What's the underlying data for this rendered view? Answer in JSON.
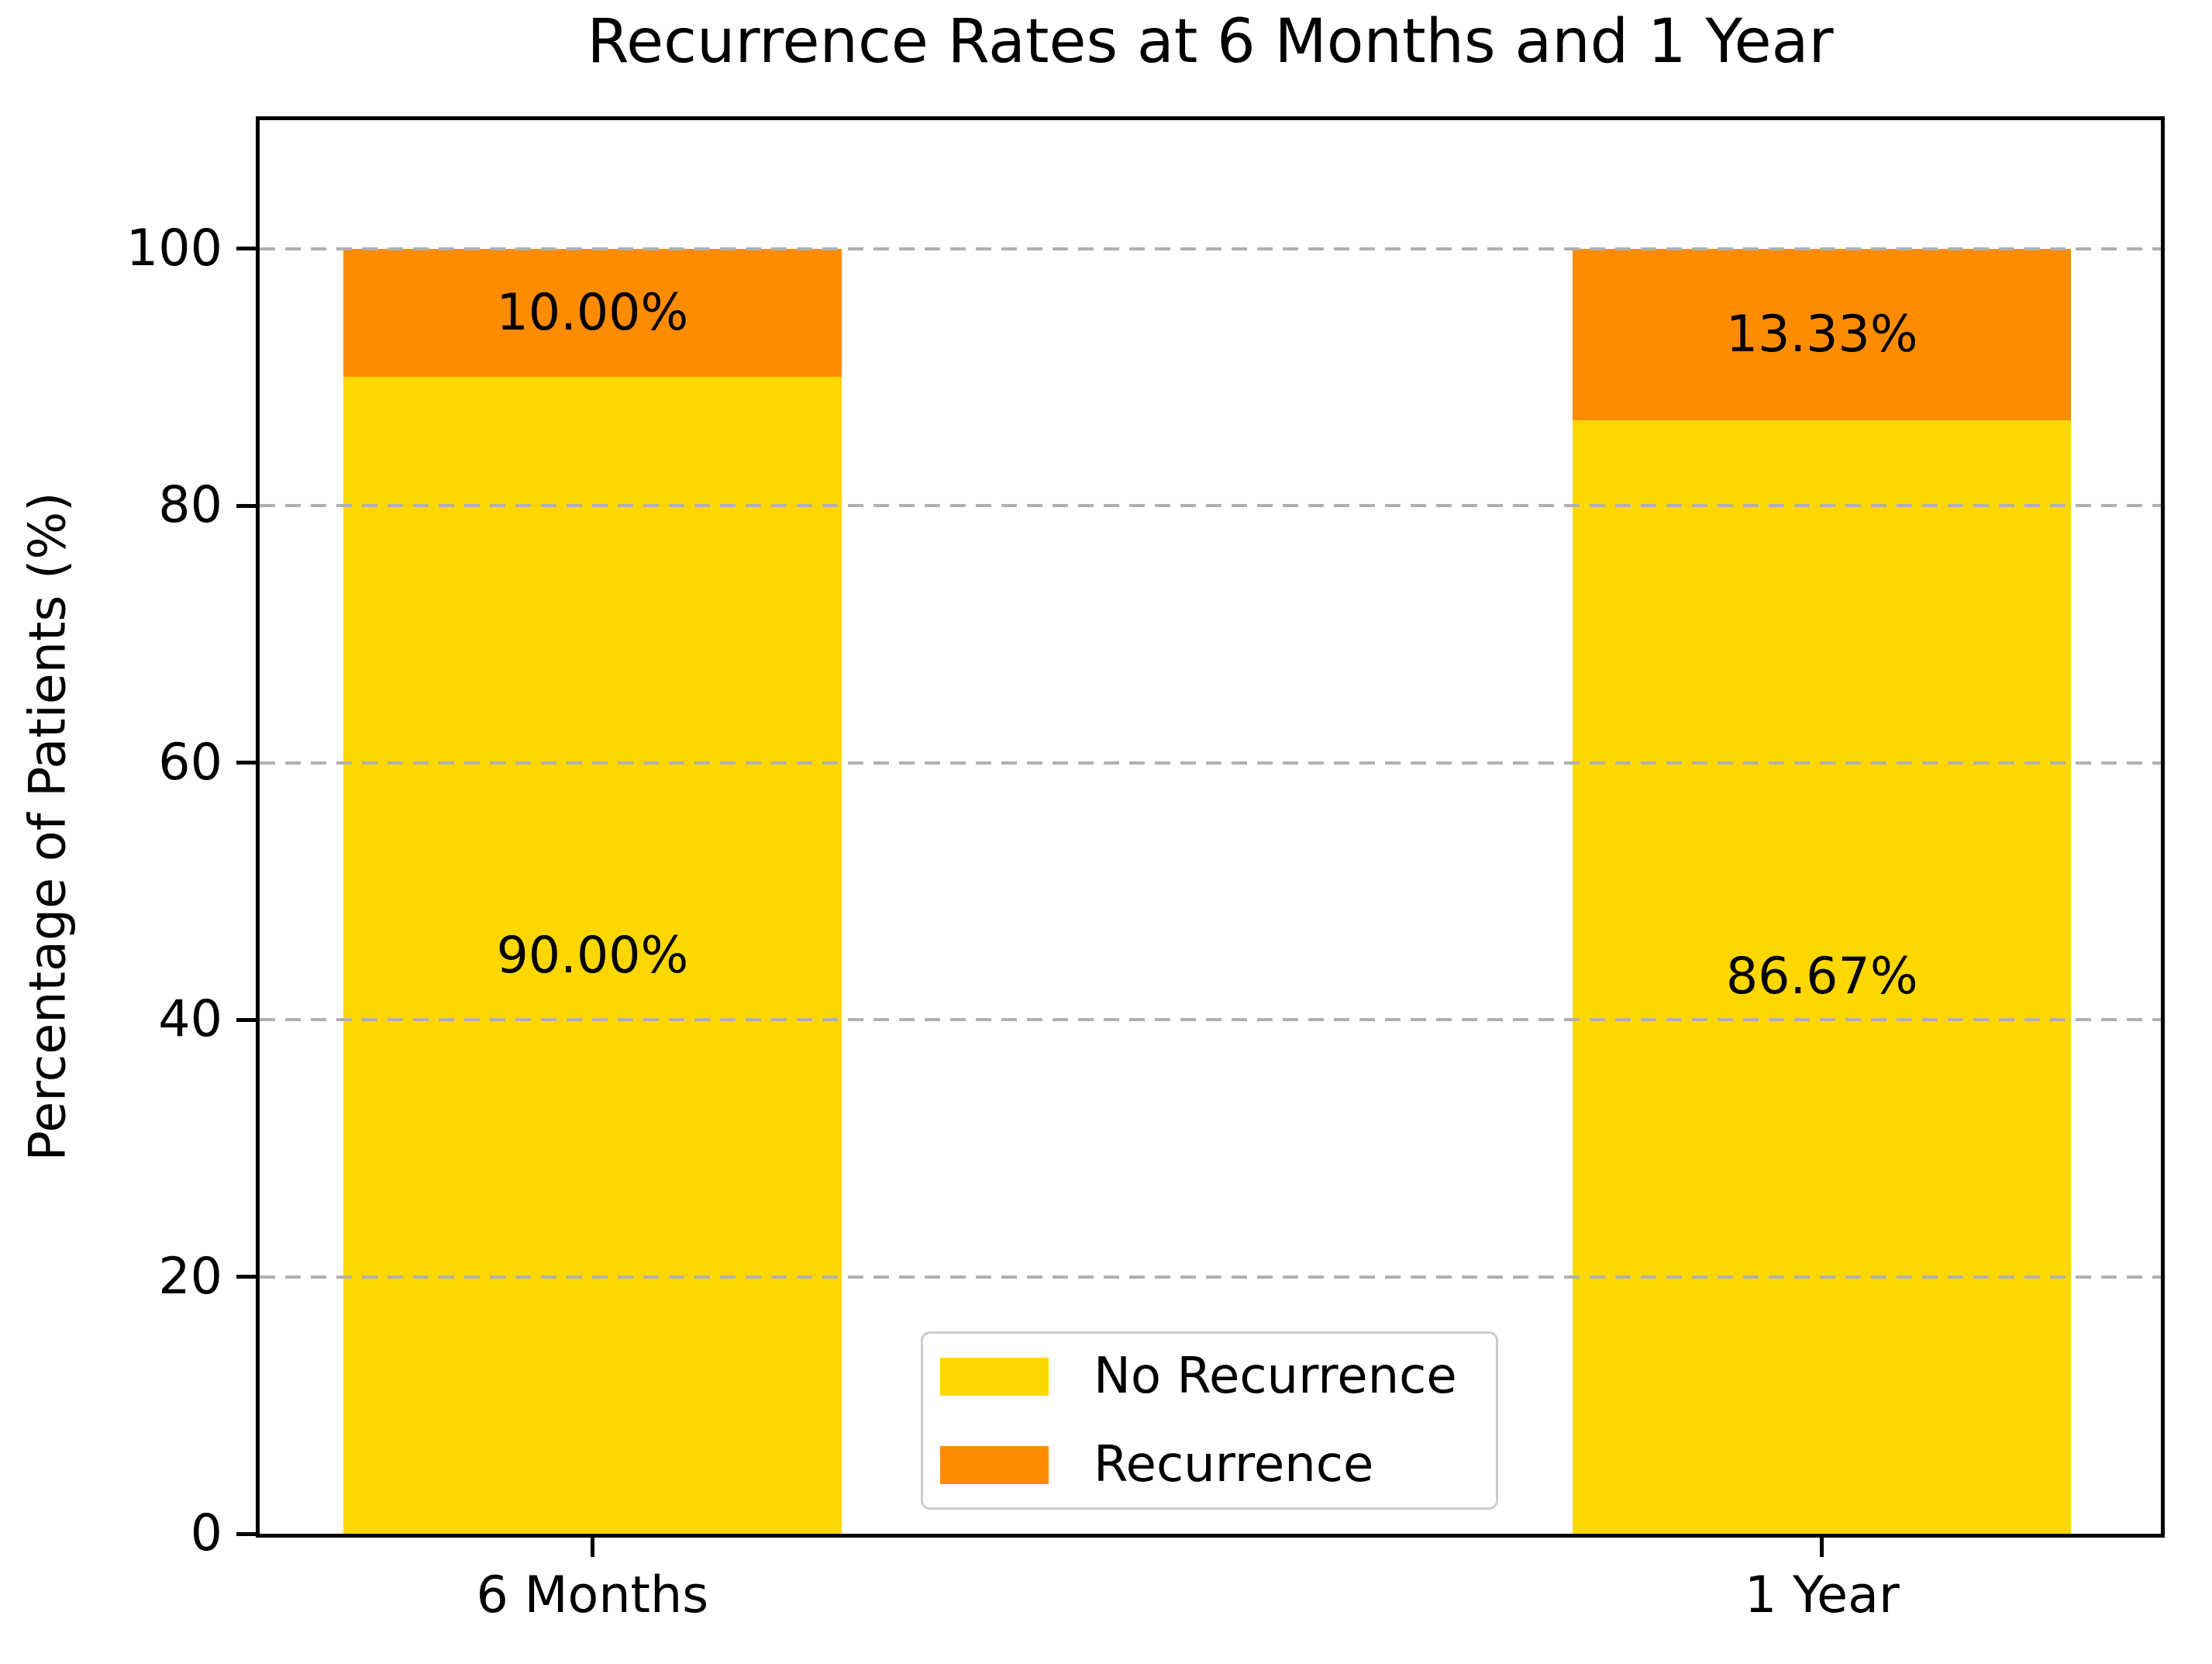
{
  "chart_data": {
    "type": "bar",
    "stacked": true,
    "title": "Recurrence Rates at 6 Months and 1 Year",
    "xlabel": "",
    "ylabel": "Percentage of Patients (%)",
    "categories": [
      "6 Months",
      "1 Year"
    ],
    "series": [
      {
        "name": "No Recurrence",
        "color": "#FFD700",
        "values": [
          90.0,
          86.67
        ],
        "labels": [
          "90.00%",
          "86.67%"
        ]
      },
      {
        "name": "Recurrence",
        "color": "#FF8C00",
        "values": [
          10.0,
          13.33
        ],
        "labels": [
          "10.00%",
          "13.33%"
        ]
      }
    ],
    "ylim": [
      0,
      110
    ],
    "yticks": [
      0,
      20,
      40,
      60,
      80,
      100
    ],
    "grid": "horizontal dashed gridlines at y ticks, drawn above bars",
    "grid_color": "#b0b0b0",
    "legend_position": "lower center inside plot",
    "legend_entries": [
      "No Recurrence",
      "Recurrence"
    ]
  },
  "colors": {
    "no_recurrence": "#FFD700",
    "recurrence": "#FF8C00",
    "spine": "#000000",
    "grid": "#b0b0b0",
    "legend_border": "#cccccc",
    "background": "#ffffff"
  }
}
